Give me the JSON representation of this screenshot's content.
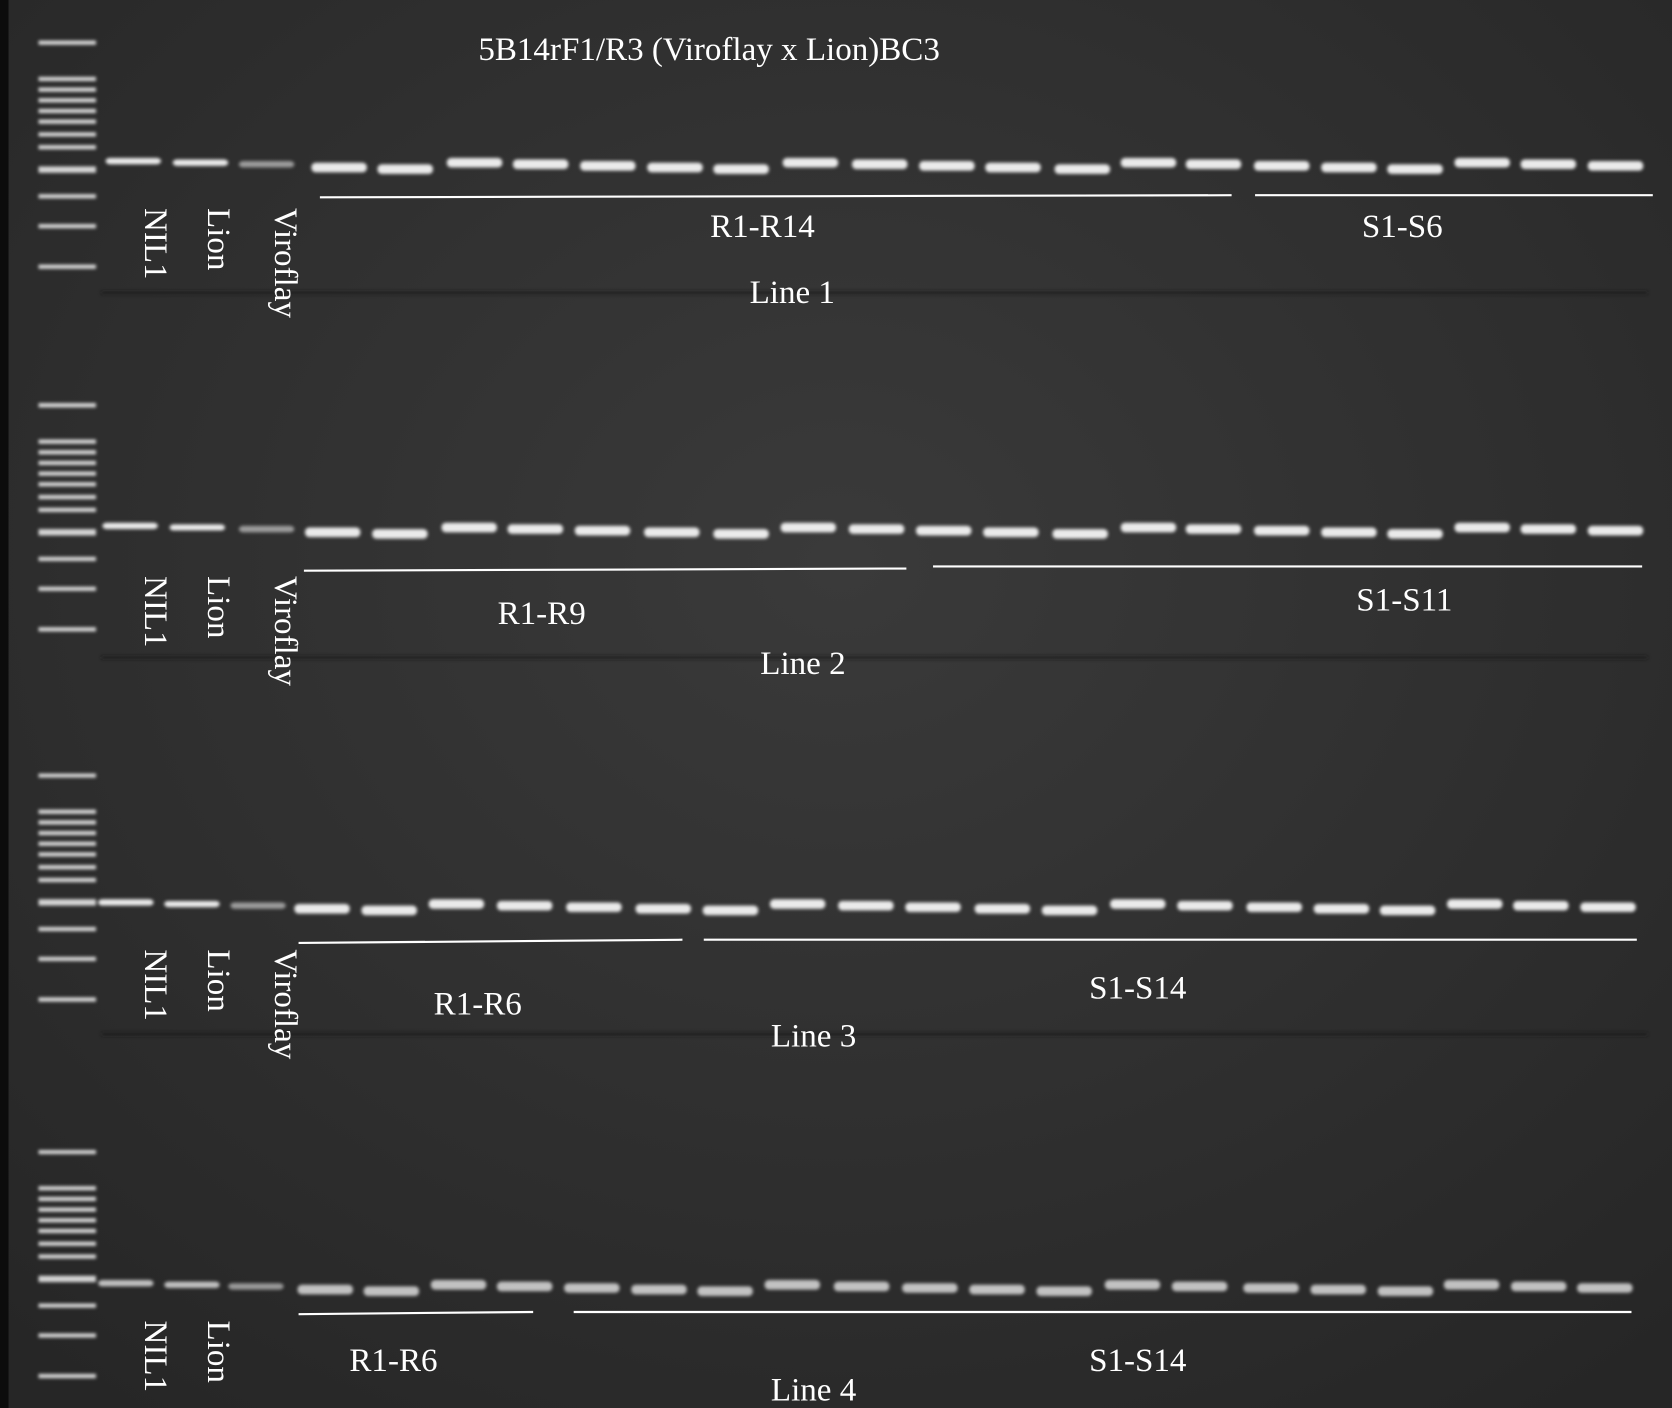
{
  "title": "5B14rF1/R3 (Viroflay x Lion)BC3",
  "rows": [
    {
      "controls": [
        "NIL1",
        "Lion",
        "Viroflay"
      ],
      "groups": [
        "R1-R14",
        "S1-S6"
      ],
      "line": "Line 1"
    },
    {
      "controls": [
        "NIL1",
        "Lion",
        "Viroflay"
      ],
      "groups": [
        "R1-R9",
        "S1-S11"
      ],
      "line": "Line 2"
    },
    {
      "controls": [
        "NIL1",
        "Lion",
        "Viroflay"
      ],
      "groups": [
        "R1-R6",
        "S1-S14"
      ],
      "line": "Line 3"
    },
    {
      "controls": [
        "NIL1",
        "Lion"
      ],
      "groups": [
        "R1-R6",
        "S1-S14"
      ],
      "line": "Line 4"
    }
  ]
}
